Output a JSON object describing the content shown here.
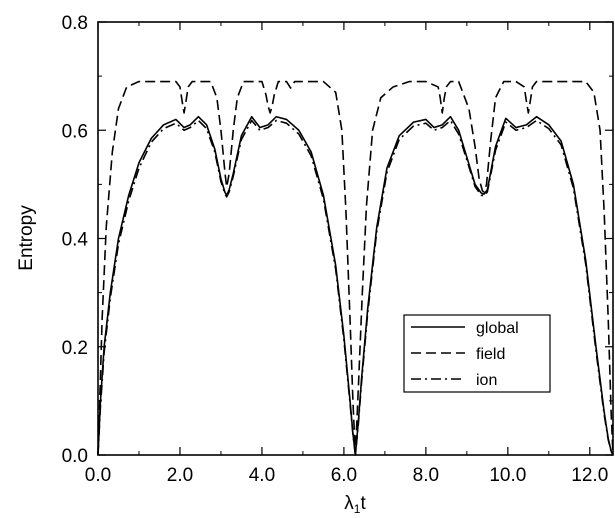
{
  "chart_data": {
    "type": "line",
    "xlabel_main": "λ",
    "xlabel_sub": "1",
    "xlabel_tail": "t",
    "ylabel": "Entropy",
    "xlim": [
      0.0,
      12.566
    ],
    "ylim": [
      0.0,
      0.8
    ],
    "xticks": [
      0.0,
      2.0,
      4.0,
      6.0,
      8.0,
      10.0,
      12.0
    ],
    "xtick_labels": [
      "0.0",
      "2.0",
      "4.0",
      "6.0",
      "8.0",
      "10.0",
      "12.0"
    ],
    "yticks": [
      0.0,
      0.2,
      0.4,
      0.6,
      0.8
    ],
    "ytick_labels": [
      "0.0",
      "0.2",
      "0.4",
      "0.6",
      "0.8"
    ],
    "legend_position": "lower-right",
    "grid": false,
    "series": [
      {
        "name": "global",
        "style": "solid",
        "x": [
          0.0,
          0.06,
          0.15,
          0.3,
          0.5,
          0.75,
          1.0,
          1.3,
          1.6,
          1.9,
          2.1,
          2.25,
          2.45,
          2.65,
          2.85,
          3.0,
          3.1,
          3.14,
          3.2,
          3.3,
          3.5,
          3.75,
          3.95,
          4.15,
          4.35,
          4.6,
          4.9,
          5.2,
          5.5,
          5.8,
          6.0,
          6.15,
          6.22,
          6.28,
          6.35,
          6.43,
          6.58,
          6.8,
          7.05,
          7.35,
          7.7,
          8.0,
          8.2,
          8.4,
          8.6,
          8.8,
          9.0,
          9.2,
          9.35,
          9.42,
          9.5,
          9.7,
          9.95,
          10.2,
          10.45,
          10.7,
          11.0,
          11.3,
          11.6,
          11.9,
          12.15,
          12.35,
          12.45,
          12.53,
          12.566
        ],
        "y": [
          0.0,
          0.1,
          0.2,
          0.3,
          0.4,
          0.48,
          0.54,
          0.585,
          0.61,
          0.62,
          0.605,
          0.61,
          0.625,
          0.61,
          0.565,
          0.51,
          0.485,
          0.48,
          0.49,
          0.52,
          0.59,
          0.625,
          0.605,
          0.61,
          0.625,
          0.62,
          0.6,
          0.56,
          0.48,
          0.35,
          0.22,
          0.1,
          0.04,
          0.0,
          0.06,
          0.14,
          0.27,
          0.42,
          0.53,
          0.59,
          0.615,
          0.62,
          0.605,
          0.61,
          0.625,
          0.6,
          0.55,
          0.5,
          0.484,
          0.482,
          0.49,
          0.57,
          0.622,
          0.605,
          0.61,
          0.625,
          0.61,
          0.58,
          0.5,
          0.36,
          0.2,
          0.08,
          0.03,
          0.005,
          0.0
        ]
      },
      {
        "name": "field",
        "style": "dashed",
        "x": [
          0.0,
          0.05,
          0.1,
          0.2,
          0.35,
          0.5,
          0.7,
          1.0,
          1.5,
          1.9,
          2.0,
          2.05,
          2.1,
          2.15,
          2.2,
          2.3,
          2.5,
          2.75,
          2.9,
          3.0,
          3.1,
          3.14,
          3.2,
          3.3,
          3.4,
          3.55,
          3.8,
          4.0,
          4.1,
          4.15,
          4.2,
          4.25,
          4.3,
          4.4,
          4.6,
          4.7,
          4.8,
          5.0,
          5.5,
          5.8,
          5.95,
          6.05,
          6.15,
          6.22,
          6.28,
          6.35,
          6.45,
          6.55,
          6.7,
          6.9,
          7.2,
          7.6,
          8.0,
          8.3,
          8.35,
          8.4,
          8.45,
          8.5,
          8.6,
          8.8,
          9.05,
          9.2,
          9.3,
          9.38,
          9.42,
          9.48,
          9.58,
          9.7,
          9.9,
          10.2,
          10.4,
          10.45,
          10.5,
          10.55,
          10.6,
          10.7,
          11.0,
          11.5,
          11.9,
          12.1,
          12.25,
          12.35,
          12.45,
          12.52,
          12.566
        ],
        "y": [
          0.0,
          0.12,
          0.25,
          0.42,
          0.56,
          0.64,
          0.68,
          0.69,
          0.69,
          0.69,
          0.68,
          0.655,
          0.632,
          0.655,
          0.68,
          0.69,
          0.69,
          0.69,
          0.66,
          0.6,
          0.52,
          0.495,
          0.52,
          0.6,
          0.66,
          0.69,
          0.69,
          0.69,
          0.665,
          0.645,
          0.632,
          0.645,
          0.665,
          0.69,
          0.69,
          0.678,
          0.69,
          0.69,
          0.69,
          0.67,
          0.6,
          0.45,
          0.25,
          0.1,
          0.0,
          0.12,
          0.3,
          0.46,
          0.6,
          0.66,
          0.68,
          0.69,
          0.69,
          0.68,
          0.66,
          0.632,
          0.66,
          0.68,
          0.69,
          0.69,
          0.64,
          0.57,
          0.51,
          0.488,
          0.486,
          0.5,
          0.58,
          0.66,
          0.69,
          0.69,
          0.68,
          0.655,
          0.632,
          0.655,
          0.68,
          0.69,
          0.69,
          0.69,
          0.69,
          0.67,
          0.6,
          0.45,
          0.25,
          0.08,
          0.0
        ]
      },
      {
        "name": "ion",
        "style": "dashdot",
        "x": [
          0.0,
          0.06,
          0.15,
          0.3,
          0.5,
          0.75,
          1.0,
          1.3,
          1.6,
          1.9,
          2.1,
          2.25,
          2.45,
          2.65,
          2.85,
          3.0,
          3.1,
          3.14,
          3.2,
          3.3,
          3.5,
          3.75,
          3.95,
          4.15,
          4.35,
          4.6,
          4.9,
          5.2,
          5.5,
          5.8,
          6.0,
          6.15,
          6.22,
          6.28,
          6.35,
          6.43,
          6.58,
          6.8,
          7.05,
          7.35,
          7.7,
          8.0,
          8.2,
          8.4,
          8.6,
          8.8,
          9.0,
          9.2,
          9.35,
          9.42,
          9.5,
          9.7,
          9.95,
          10.2,
          10.45,
          10.7,
          11.0,
          11.3,
          11.6,
          11.9,
          12.15,
          12.35,
          12.45,
          12.53,
          12.566
        ],
        "y": [
          0.0,
          0.09,
          0.19,
          0.29,
          0.39,
          0.47,
          0.53,
          0.578,
          0.603,
          0.613,
          0.6,
          0.605,
          0.618,
          0.603,
          0.56,
          0.505,
          0.482,
          0.477,
          0.486,
          0.515,
          0.583,
          0.618,
          0.6,
          0.605,
          0.618,
          0.613,
          0.593,
          0.553,
          0.473,
          0.343,
          0.213,
          0.095,
          0.038,
          0.0,
          0.055,
          0.133,
          0.262,
          0.412,
          0.522,
          0.583,
          0.608,
          0.613,
          0.6,
          0.605,
          0.618,
          0.593,
          0.545,
          0.496,
          0.48,
          0.479,
          0.486,
          0.563,
          0.615,
          0.6,
          0.605,
          0.618,
          0.603,
          0.573,
          0.493,
          0.353,
          0.193,
          0.075,
          0.028,
          0.004,
          0.0
        ]
      }
    ]
  }
}
